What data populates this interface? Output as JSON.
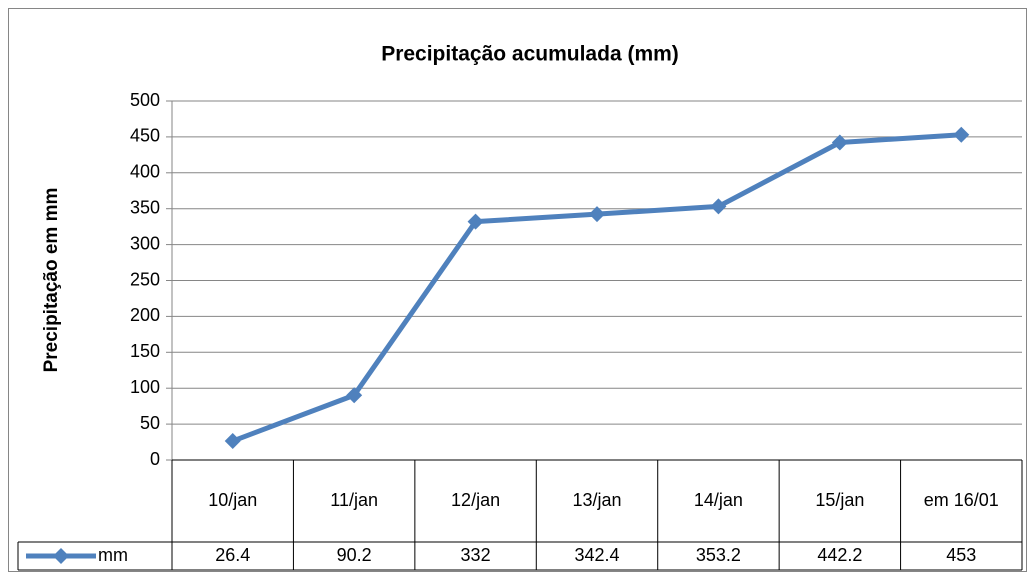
{
  "chart_data": {
    "type": "line",
    "title": "Precipitação acumulada (mm)",
    "y_label": "Precipitação em mm",
    "categories": [
      "10/jan",
      "11/jan",
      "12/jan",
      "13/jan",
      "14/jan",
      "15/jan",
      "em 16/01"
    ],
    "series": [
      {
        "name": "mm",
        "color": "#4f81bd",
        "values": [
          26.4,
          90.2,
          332,
          342.4,
          353.2,
          442.2,
          453
        ]
      }
    ],
    "ylim": [
      0,
      500
    ],
    "yticks": [
      0,
      50,
      100,
      150,
      200,
      250,
      300,
      350,
      400,
      450,
      500
    ],
    "grid": true,
    "data_table": true
  }
}
